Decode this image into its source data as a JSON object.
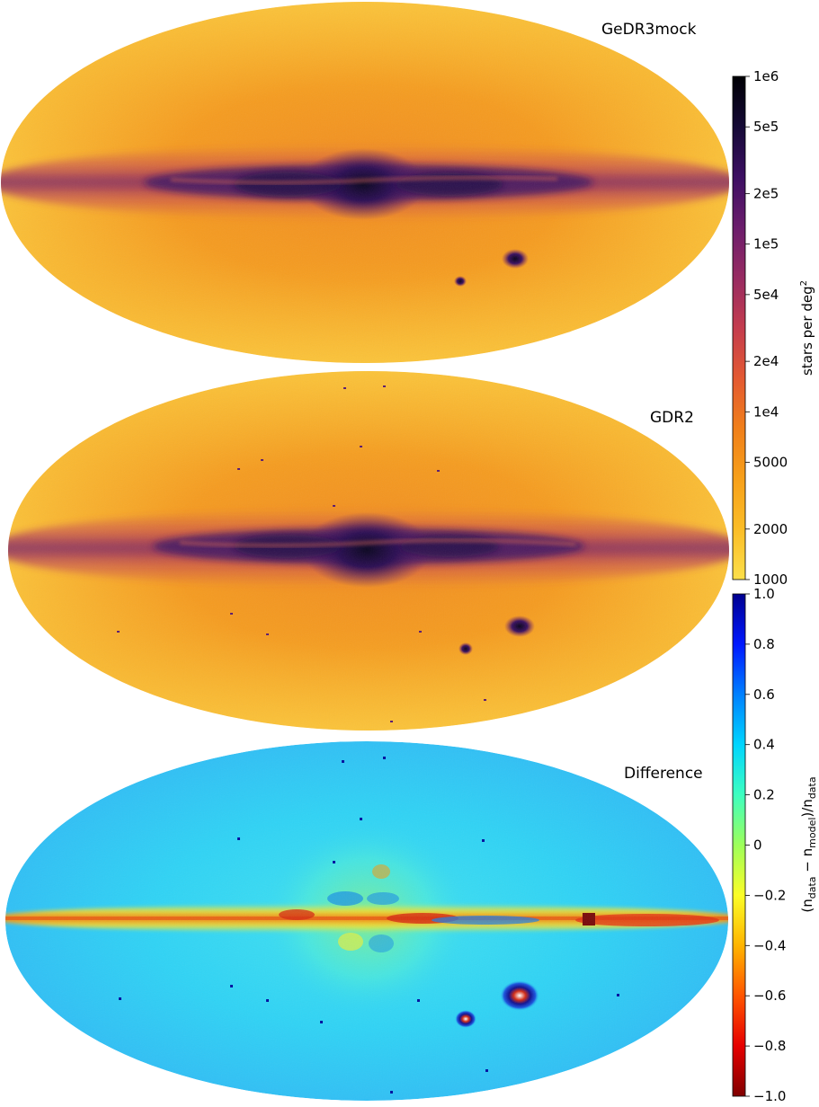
{
  "chart_data": [
    {
      "type": "heatmap",
      "projection": "mollweide",
      "title": "GeDR3mock",
      "scale": "log",
      "colormap": "inferno_r",
      "range": [
        1000,
        1000000
      ],
      "features": [
        "galactic plane dense band",
        "bulge at center",
        "LMC",
        "SMC"
      ]
    },
    {
      "type": "heatmap",
      "projection": "mollweide",
      "title": "GDR2",
      "scale": "log",
      "colormap": "inferno_r",
      "range": [
        1000,
        1000000
      ],
      "features": [
        "galactic plane dense band",
        "bulge at center",
        "LMC",
        "SMC",
        "globular clusters"
      ]
    },
    {
      "type": "heatmap",
      "projection": "mollweide",
      "title": "Difference",
      "scale": "linear",
      "colormap": "jet_r",
      "range": [
        -1.0,
        1.0
      ],
      "features": [
        "model overestimates in galactic plane",
        "LMC/SMC cores negative"
      ]
    }
  ],
  "colorbar_density": {
    "label": "stars per deg",
    "label_exp": "2",
    "ticks": [
      {
        "value": 1000,
        "label": "1000"
      },
      {
        "value": 2000,
        "label": "2000"
      },
      {
        "value": 5000,
        "label": "5000"
      },
      {
        "value": 10000,
        "label": "1e4"
      },
      {
        "value": 20000,
        "label": "2e4"
      },
      {
        "value": 50000,
        "label": "5e4"
      },
      {
        "value": 100000,
        "label": "1e5"
      },
      {
        "value": 200000,
        "label": "2e5"
      },
      {
        "value": 500000,
        "label": "5e5"
      },
      {
        "value": 1000000,
        "label": "1e6"
      }
    ],
    "colors": [
      "#fcdf4a",
      "#f9a21c",
      "#f07f1a",
      "#e35932",
      "#c43c4e",
      "#972b62",
      "#6b1d6c",
      "#3c0f62",
      "#150a36",
      "#000004"
    ]
  },
  "colorbar_diff": {
    "label_parts": [
      "(n",
      "data",
      " − n",
      "model",
      ")/n",
      "data"
    ],
    "ticks": [
      {
        "value": 1.0,
        "label": "1.0"
      },
      {
        "value": 0.8,
        "label": "0.8"
      },
      {
        "value": 0.6,
        "label": "0.6"
      },
      {
        "value": 0.4,
        "label": "0.4"
      },
      {
        "value": 0.2,
        "label": "0.2"
      },
      {
        "value": 0,
        "label": "0"
      },
      {
        "value": -0.2,
        "label": "−0.2"
      },
      {
        "value": -0.4,
        "label": "−0.4"
      },
      {
        "value": -0.6,
        "label": "−0.6"
      },
      {
        "value": -0.8,
        "label": "−0.8"
      },
      {
        "value": -1.0,
        "label": "−1.0"
      }
    ],
    "colors": [
      "#800000",
      "#e60000",
      "#ff5500",
      "#ffb400",
      "#fbfd27",
      "#9dff5a",
      "#3dffc0",
      "#00d5ff",
      "#0080ff",
      "#0018ff",
      "#00008f"
    ]
  },
  "colors": {
    "inferno_light": "#fcdf4a",
    "inferno_mid": "#f59d1d",
    "inferno_purple": "#5a1a6e",
    "inferno_dark": "#120a2e",
    "jet_cyan": "#2fd3f5",
    "jet_red": "#d42a12",
    "jet_yellow": "#f6f02e",
    "jet_blue": "#1020c8"
  }
}
